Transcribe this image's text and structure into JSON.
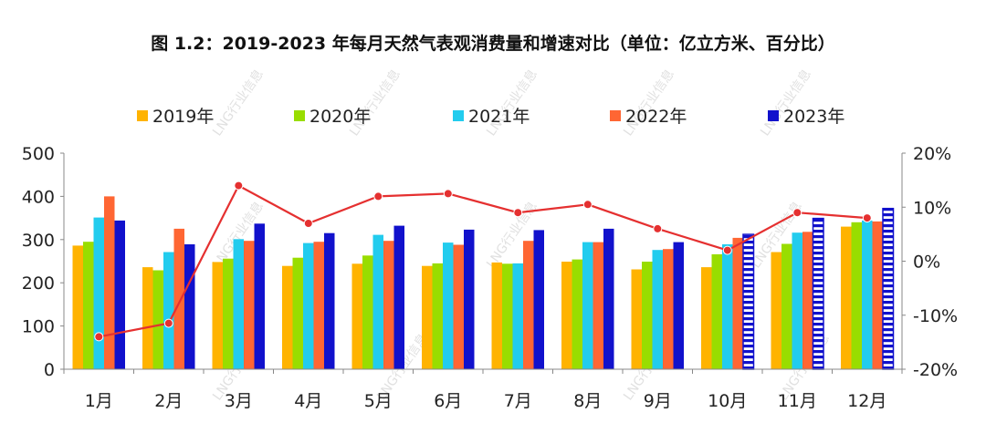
{
  "chart_data": {
    "type": "bar",
    "title": "图 1.2：2019-2023 年每月天然气表观消费量和增速对比（单位：亿立方米、百分比）",
    "categories": [
      "1月",
      "2月",
      "3月",
      "4月",
      "5月",
      "6月",
      "7月",
      "8月",
      "9月",
      "10月",
      "11月",
      "12月"
    ],
    "ylim": [
      0,
      500
    ],
    "yticks": [
      "0",
      "100",
      "200",
      "300",
      "400",
      "500"
    ],
    "y2lim": [
      -20,
      20
    ],
    "y2ticks": [
      "-20%",
      "-10%",
      "0%",
      "10%",
      "20%"
    ],
    "legend_position": "top",
    "series": [
      {
        "name": "2019年",
        "color": "#FFB300",
        "values": [
          286,
          236,
          248,
          239,
          244,
          239,
          247,
          249,
          231,
          236,
          271,
          330
        ]
      },
      {
        "name": "2020年",
        "color": "#99DD00",
        "values": [
          295,
          229,
          256,
          258,
          263,
          245,
          244,
          254,
          249,
          266,
          290,
          340
        ]
      },
      {
        "name": "2021年",
        "color": "#22CCEE",
        "values": [
          351,
          271,
          301,
          292,
          311,
          293,
          245,
          294,
          276,
          289,
          316,
          344
        ]
      },
      {
        "name": "2022年",
        "color": "#FF6633",
        "values": [
          400,
          325,
          297,
          295,
          297,
          288,
          297,
          294,
          278,
          304,
          318,
          342
        ]
      },
      {
        "name": "2023年",
        "color": "#1111CC",
        "values": [
          344,
          289,
          337,
          315,
          332,
          323,
          322,
          325,
          294,
          312,
          349,
          372
        ],
        "hatched_from_index": 9
      }
    ],
    "growth": {
      "color": "#E53030",
      "values": [
        -14,
        -11.5,
        14,
        7,
        12,
        12.5,
        9,
        10.5,
        6,
        2,
        9,
        8
      ]
    }
  },
  "watermark": "LNG行业信息"
}
